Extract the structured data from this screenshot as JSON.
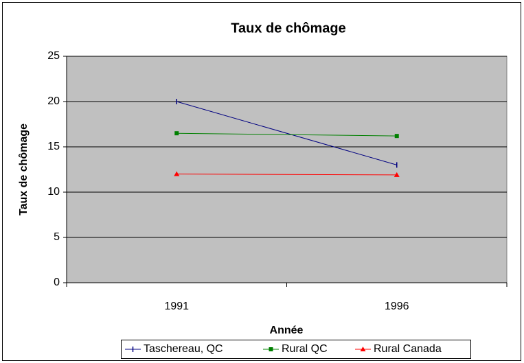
{
  "chart_data": {
    "type": "line",
    "title": "Taux de chômage",
    "x_label": "Année",
    "y_label": "Taux de chômage",
    "categories": [
      "1991",
      "1996"
    ],
    "series": [
      {
        "name": "Taschereau, QC",
        "color": "#000080",
        "marker": "plus",
        "values": [
          20,
          13
        ]
      },
      {
        "name": "Rural QC",
        "color": "#008000",
        "marker": "square",
        "values": [
          16.5,
          16.2
        ]
      },
      {
        "name": "Rural Canada",
        "color": "#ff0000",
        "marker": "triangle",
        "values": [
          12,
          11.9
        ]
      }
    ],
    "ylim": [
      0,
      25
    ],
    "yticks": [
      0,
      5,
      10,
      15,
      20,
      25
    ],
    "grid": true,
    "legend": "bottom"
  }
}
